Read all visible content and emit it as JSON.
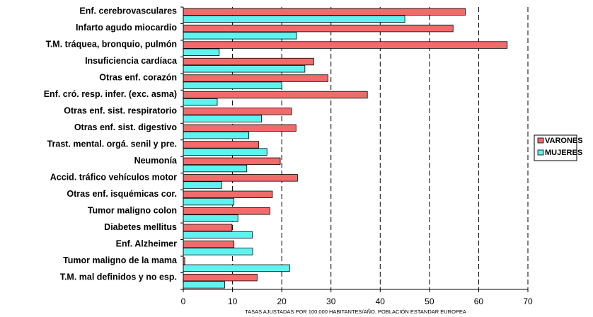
{
  "chart_data": {
    "type": "bar",
    "orientation": "horizontal",
    "categories": [
      "Enf. cerebrovasculares",
      "Infarto agudo miocardio",
      "T.M. tráquea, bronquio,  pulmón",
      "Insuficiencia cardíaca",
      "Otras enf. corazón",
      "Enf. cró. resp. infer. (exc. asma)",
      "Otras enf. sist. respiratorio",
      "Otras enf. sist. digestivo",
      "Trast. mental. orgá. senil y pre.",
      "Neumonía",
      "Accid. tráfico vehículos motor",
      "Otras enf. isquémicas cor.",
      "Tumor maligno colon",
      "Diabetes mellitus",
      "Enf. Alzheimer",
      "Tumor maligno de la mama",
      "T.M. mal definidos y no esp."
    ],
    "series": [
      {
        "name": "VARONES",
        "color": "#f26b6b",
        "values": [
          57.3,
          54.8,
          65.8,
          26.5,
          29.4,
          37.4,
          22.0,
          22.9,
          15.3,
          19.7,
          23.2,
          18.1,
          17.6,
          9.9,
          10.3,
          0.3,
          15.0
        ]
      },
      {
        "name": "MUJERES",
        "color": "#5ff3f0",
        "values": [
          45.0,
          23.0,
          7.3,
          24.7,
          20.0,
          6.9,
          15.9,
          13.3,
          17.0,
          12.9,
          7.8,
          10.3,
          11.1,
          14.0,
          14.1,
          21.6,
          8.4
        ]
      }
    ],
    "x_ticks": [
      "0",
      "10",
      "20",
      "30",
      "40",
      "50",
      "60",
      "70"
    ],
    "xlim": [
      0,
      70
    ],
    "xlabel": "TASAS AJUSTADAS POR 100.000 HABITANTES/AÑO. POBLACIÓN ESTANDAR EUROPEA",
    "grid": "vertical dashed",
    "legend": "right"
  }
}
